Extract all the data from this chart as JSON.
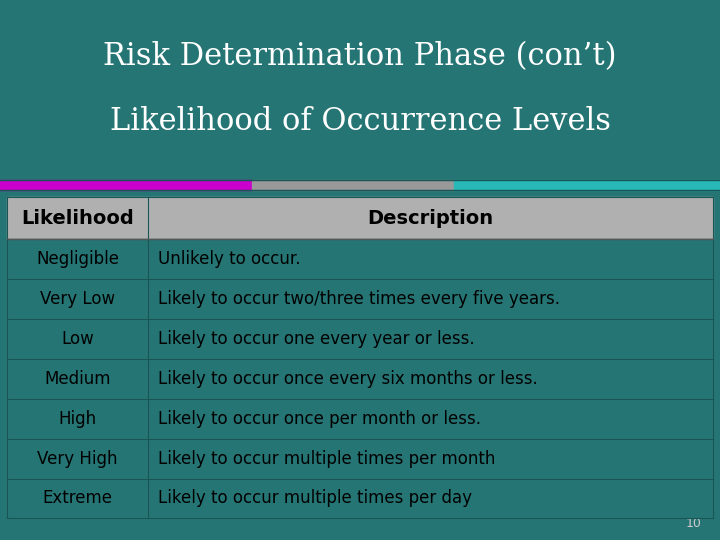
{
  "title_line1": "Risk Determination Phase (con’t)",
  "title_line2": "Likelihood of Occurrence Levels",
  "title_color": "#ffffff",
  "bg_color": "#267575",
  "header_bg": "#b0b0b0",
  "row_bg": "#267575",
  "header_text_color": "#000000",
  "row_text_color": "#000000",
  "accent_bar_colors": [
    "#cc00cc",
    "#999999",
    "#28b8b8"
  ],
  "page_number": "10",
  "col1_header": "Likelihood",
  "col2_header": "Description",
  "rows": [
    [
      "Negligible",
      "Unlikely to occur."
    ],
    [
      "Very Low",
      "Likely to occur two/three times every five years."
    ],
    [
      "Low",
      "Likely to occur one every year or less."
    ],
    [
      "Medium",
      "Likely to occur once every six months or less."
    ],
    [
      "High",
      "Likely to occur once per month or less."
    ],
    [
      "Very High",
      "Likely to occur multiple times per month"
    ],
    [
      "Extreme",
      "Likely to occur multiple times per day"
    ]
  ],
  "title_fontsize": 22,
  "header_fontsize": 14,
  "row_fontsize": 12
}
